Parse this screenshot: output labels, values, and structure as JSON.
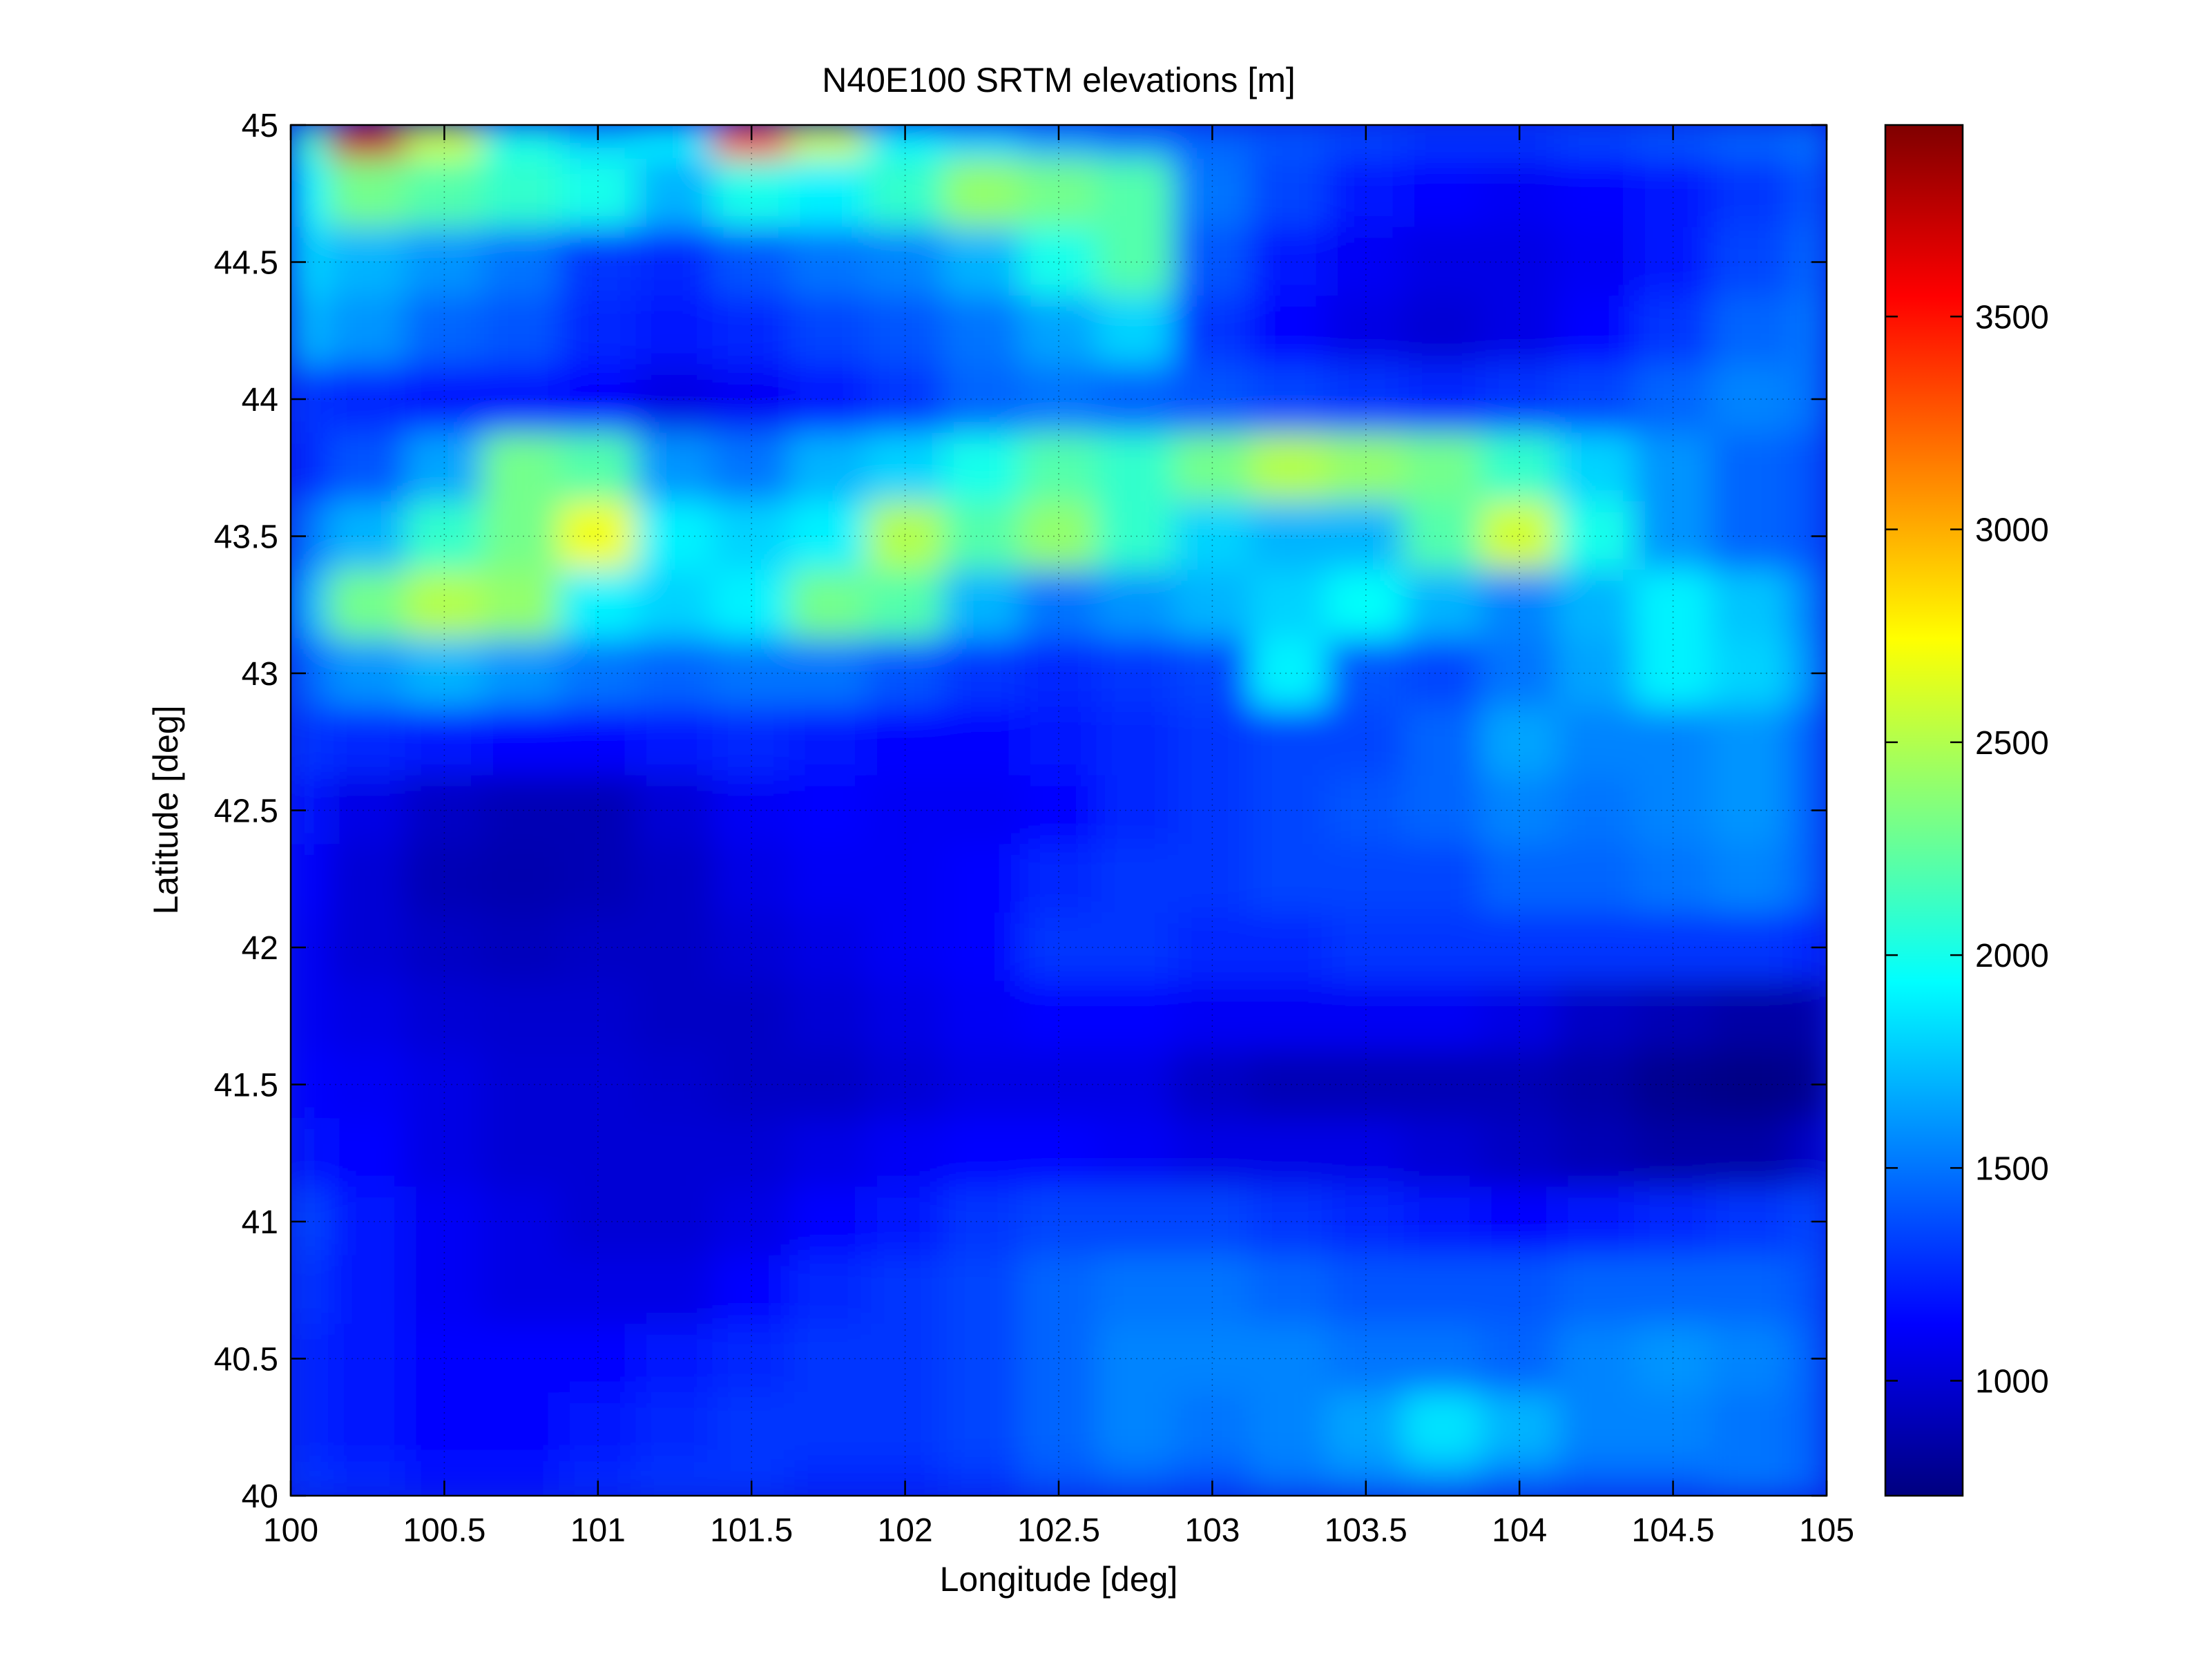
{
  "chart_data": {
    "type": "heatmap",
    "title": "N40E100 SRTM elevations [m]",
    "xlabel": "Longitude [deg]",
    "ylabel": "Latitude [deg]",
    "xlim": [
      100,
      105
    ],
    "ylim": [
      40,
      45
    ],
    "xticks": [
      100,
      100.5,
      101,
      101.5,
      102,
      102.5,
      103,
      103.5,
      104,
      104.5,
      105
    ],
    "yticks": [
      40,
      40.5,
      41,
      41.5,
      42,
      42.5,
      43,
      43.5,
      44,
      44.5,
      45
    ],
    "xtick_labels": [
      "100",
      "100.5",
      "101",
      "101.5",
      "102",
      "102.5",
      "103",
      "103.5",
      "104",
      "104.5",
      "105"
    ],
    "ytick_labels": [
      "40",
      "40.5",
      "41",
      "41.5",
      "42",
      "42.5",
      "43",
      "43.5",
      "44",
      "44.5",
      "45"
    ],
    "grid": true,
    "colormap": "jet",
    "colorbar": {
      "range": [
        730,
        3950
      ],
      "ticks": [
        1000,
        1500,
        2000,
        2500,
        3000,
        3500
      ],
      "tick_labels": [
        "1000",
        "1500",
        "2000",
        "2500",
        "3000",
        "3500"
      ],
      "position": "right"
    },
    "grid_lon": [
      100,
      100.25,
      100.5,
      100.75,
      101,
      101.25,
      101.5,
      101.75,
      102,
      102.25,
      102.5,
      102.75,
      103,
      103.25,
      103.5,
      103.75,
      104,
      104.25,
      104.5,
      104.75,
      105
    ],
    "grid_lat": [
      45,
      44.75,
      44.5,
      44.25,
      44,
      43.75,
      43.5,
      43.25,
      43,
      42.75,
      42.5,
      42.25,
      42,
      41.75,
      41.5,
      41.25,
      41,
      40.75,
      40.5,
      40.25,
      40
    ],
    "elevation_m": [
      [
        2100,
        3700,
        2600,
        2000,
        1800,
        1900,
        3300,
        2600,
        1900,
        1800,
        1650,
        1550,
        1450,
        1400,
        1350,
        1300,
        1300,
        1350,
        1400,
        1450,
        1500
      ],
      [
        1900,
        2300,
        2200,
        2100,
        2000,
        1700,
        2000,
        1900,
        2100,
        2400,
        2300,
        2200,
        1500,
        1350,
        1200,
        1150,
        1100,
        1150,
        1200,
        1300,
        1400
      ],
      [
        1800,
        1700,
        1600,
        1500,
        1300,
        1250,
        1400,
        1500,
        1550,
        1700,
        2000,
        2200,
        1400,
        1200,
        1100,
        1050,
        1050,
        1100,
        1200,
        1350,
        1450
      ],
      [
        1700,
        1600,
        1450,
        1400,
        1250,
        1200,
        1250,
        1350,
        1400,
        1500,
        1650,
        1800,
        1300,
        1150,
        1050,
        1000,
        1050,
        1150,
        1300,
        1450,
        1500
      ],
      [
        1300,
        1250,
        1200,
        1200,
        1150,
        1050,
        1100,
        1200,
        1300,
        1450,
        1500,
        1450,
        1400,
        1350,
        1300,
        1250,
        1300,
        1350,
        1450,
        1550,
        1500
      ],
      [
        1250,
        1400,
        1650,
        2300,
        2200,
        1600,
        1500,
        1700,
        1800,
        2000,
        2200,
        2100,
        2300,
        2500,
        2400,
        2300,
        2100,
        1800,
        1600,
        1450,
        1400
      ],
      [
        1500,
        1700,
        2100,
        2300,
        2700,
        1900,
        1800,
        1900,
        2500,
        2200,
        2400,
        2100,
        1800,
        1700,
        1700,
        2200,
        2600,
        2000,
        1600,
        1450,
        1400
      ],
      [
        1700,
        2300,
        2500,
        2400,
        1900,
        1800,
        1900,
        2300,
        2200,
        1700,
        1500,
        1600,
        1700,
        1800,
        1950,
        1700,
        1550,
        1700,
        1900,
        1750,
        1550
      ],
      [
        1450,
        1600,
        1700,
        1600,
        1500,
        1450,
        1500,
        1500,
        1400,
        1300,
        1250,
        1300,
        1350,
        1900,
        1400,
        1350,
        1500,
        1650,
        1900,
        1800,
        1600
      ],
      [
        1300,
        1250,
        1200,
        1150,
        1150,
        1200,
        1250,
        1200,
        1150,
        1150,
        1200,
        1250,
        1300,
        1350,
        1350,
        1450,
        1650,
        1550,
        1550,
        1600,
        1450
      ],
      [
        1200,
        1050,
        950,
        900,
        900,
        1000,
        1100,
        1150,
        1100,
        1100,
        1150,
        1250,
        1300,
        1350,
        1400,
        1450,
        1550,
        1500,
        1550,
        1600,
        1450
      ],
      [
        1150,
        1000,
        900,
        880,
        900,
        950,
        1050,
        1100,
        1100,
        1150,
        1250,
        1300,
        1300,
        1350,
        1350,
        1350,
        1450,
        1450,
        1500,
        1550,
        1450
      ],
      [
        1100,
        1000,
        950,
        920,
        950,
        950,
        1000,
        1050,
        1100,
        1150,
        1300,
        1300,
        1250,
        1250,
        1300,
        1300,
        1300,
        1300,
        1300,
        1300,
        1250
      ],
      [
        1100,
        1050,
        1000,
        980,
        980,
        950,
        950,
        1000,
        1050,
        1100,
        1150,
        1150,
        1100,
        1100,
        1100,
        1100,
        1050,
        950,
        900,
        850,
        850
      ],
      [
        1150,
        1100,
        1050,
        1000,
        1000,
        980,
        950,
        950,
        1000,
        1050,
        1050,
        1050,
        950,
        900,
        900,
        900,
        900,
        850,
        780,
        750,
        780
      ],
      [
        1200,
        1150,
        1050,
        1000,
        1000,
        1000,
        1000,
        1050,
        1100,
        1150,
        1150,
        1100,
        1050,
        1050,
        1050,
        1000,
        950,
        900,
        850,
        850,
        950
      ],
      [
        1350,
        1200,
        1100,
        1050,
        1000,
        1000,
        1050,
        1150,
        1200,
        1300,
        1350,
        1350,
        1350,
        1300,
        1250,
        1200,
        1150,
        1200,
        1250,
        1300,
        1350
      ],
      [
        1300,
        1200,
        1100,
        1050,
        1050,
        1050,
        1150,
        1250,
        1300,
        1350,
        1450,
        1500,
        1500,
        1450,
        1400,
        1400,
        1400,
        1450,
        1450,
        1450,
        1400
      ],
      [
        1250,
        1200,
        1150,
        1150,
        1150,
        1200,
        1250,
        1300,
        1300,
        1350,
        1450,
        1550,
        1550,
        1550,
        1500,
        1500,
        1450,
        1550,
        1600,
        1550,
        1450
      ],
      [
        1250,
        1200,
        1150,
        1150,
        1200,
        1250,
        1300,
        1300,
        1300,
        1350,
        1450,
        1550,
        1500,
        1550,
        1650,
        1850,
        1700,
        1550,
        1550,
        1500,
        1450
      ],
      [
        1300,
        1250,
        1200,
        1200,
        1250,
        1300,
        1300,
        1250,
        1250,
        1300,
        1400,
        1450,
        1400,
        1500,
        1550,
        1600,
        1500,
        1450,
        1450,
        1500,
        1450
      ]
    ]
  }
}
